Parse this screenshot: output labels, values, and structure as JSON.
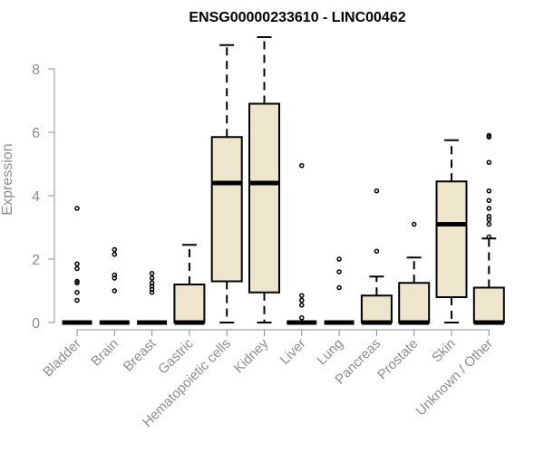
{
  "chart_data": {
    "type": "box",
    "title": "ENSG00000233610 - LINC00462",
    "xlabel": "",
    "ylabel": "Expression",
    "ylim": [
      0,
      9
    ],
    "yticks": [
      0,
      2,
      4,
      6,
      8
    ],
    "box_fill": "#ede6cc",
    "categories": [
      "Bladder",
      "Brain",
      "Breast",
      "Gastric",
      "Hematopoietic cells",
      "Kidney",
      "Liver",
      "Lung",
      "Pancreas",
      "Prostate",
      "Skin",
      "Unknown / Other"
    ],
    "boxes": [
      {
        "category": "Bladder",
        "q1": 0,
        "median": 0,
        "q3": 0,
        "whisker_low": 0,
        "whisker_high": 0,
        "outliers": [
          0.7,
          0.95,
          1.25,
          1.3,
          1.7,
          1.85,
          3.6
        ]
      },
      {
        "category": "Brain",
        "q1": 0,
        "median": 0,
        "q3": 0,
        "whisker_low": 0,
        "whisker_high": 0,
        "outliers": [
          1.0,
          1.4,
          1.5,
          2.15,
          2.3
        ]
      },
      {
        "category": "Breast",
        "q1": 0,
        "median": 0,
        "q3": 0,
        "whisker_low": 0,
        "whisker_high": 0,
        "outliers": [
          0.95,
          1.05,
          1.15,
          1.25,
          1.4,
          1.55
        ]
      },
      {
        "category": "Gastric",
        "q1": 0,
        "median": 0,
        "q3": 1.2,
        "whisker_low": 0,
        "whisker_high": 2.45,
        "outliers": []
      },
      {
        "category": "Hematopoietic cells",
        "q1": 1.3,
        "median": 4.4,
        "q3": 5.85,
        "whisker_low": 0,
        "whisker_high": 8.75,
        "outliers": []
      },
      {
        "category": "Kidney",
        "q1": 0.95,
        "median": 4.4,
        "q3": 6.9,
        "whisker_low": 0,
        "whisker_high": 9.0,
        "outliers": []
      },
      {
        "category": "Liver",
        "q1": 0,
        "median": 0,
        "q3": 0,
        "whisker_low": 0,
        "whisker_high": 0,
        "outliers": [
          0.15,
          0.55,
          0.7,
          0.85,
          4.95
        ]
      },
      {
        "category": "Lung",
        "q1": 0,
        "median": 0,
        "q3": 0,
        "whisker_low": 0,
        "whisker_high": 0,
        "outliers": [
          1.1,
          1.6,
          2.0
        ]
      },
      {
        "category": "Pancreas",
        "q1": 0,
        "median": 0,
        "q3": 0.85,
        "whisker_low": 0,
        "whisker_high": 1.45,
        "outliers": [
          2.25,
          4.15
        ]
      },
      {
        "category": "Prostate",
        "q1": 0,
        "median": 0,
        "q3": 1.25,
        "whisker_low": 0,
        "whisker_high": 2.05,
        "outliers": [
          3.1
        ]
      },
      {
        "category": "Skin",
        "q1": 0.8,
        "median": 3.1,
        "q3": 4.45,
        "whisker_low": 0,
        "whisker_high": 5.75,
        "outliers": []
      },
      {
        "category": "Unknown / Other",
        "q1": 0,
        "median": 0,
        "q3": 1.1,
        "whisker_low": 0,
        "whisker_high": 2.65,
        "outliers": [
          2.7,
          3.1,
          3.25,
          3.35,
          3.6,
          3.85,
          4.15,
          5.05,
          5.85,
          5.9
        ]
      }
    ]
  }
}
